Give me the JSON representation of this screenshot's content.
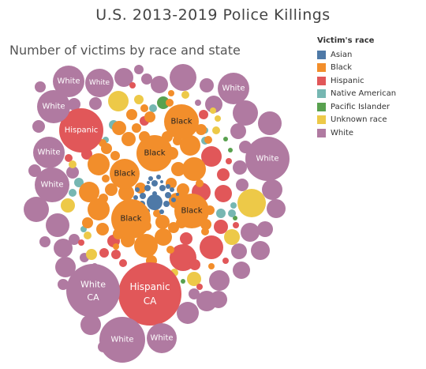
{
  "title": "U.S. 2013-2019 Police Killings",
  "subtitle": "Number of victims by race and state",
  "legend": {
    "title": "Victim's race",
    "items": [
      {
        "label": "Asian",
        "color": "#4e79a7"
      },
      {
        "label": "Black",
        "color": "#f28e2b"
      },
      {
        "label": "Hispanic",
        "color": "#e15759"
      },
      {
        "label": "Native American",
        "color": "#76b7b2"
      },
      {
        "label": "Pacific Islander",
        "color": "#59a14f"
      },
      {
        "label": "Unknown race",
        "color": "#edc948"
      },
      {
        "label": "White",
        "color": "#b07aa1"
      }
    ]
  },
  "chart_data": {
    "type": "packed-bubble",
    "title": "U.S. 2013-2019 Police Killings",
    "subtitle": "Number of victims by race and state",
    "legend_position": "top-right",
    "labeled_bubbles": [
      {
        "race": "Hispanic",
        "state": "CA",
        "lines": [
          "Hispanic",
          "CA"
        ]
      },
      {
        "race": "White",
        "state": "CA",
        "lines": [
          "White",
          "CA"
        ]
      },
      {
        "race": "Hispanic",
        "lines": [
          "Hispanic"
        ]
      },
      {
        "race": "Black",
        "lines": [
          "Black"
        ]
      },
      {
        "race": "Black",
        "lines": [
          "Black"
        ]
      },
      {
        "race": "Black",
        "lines": [
          "Black"
        ]
      },
      {
        "race": "Black",
        "lines": [
          "Black"
        ]
      },
      {
        "race": "Black",
        "lines": [
          "Black"
        ]
      },
      {
        "race": "White",
        "lines": [
          "White"
        ]
      },
      {
        "race": "White",
        "lines": [
          "White"
        ]
      },
      {
        "race": "White",
        "lines": [
          "White"
        ]
      },
      {
        "race": "White",
        "lines": [
          "White"
        ]
      },
      {
        "race": "White",
        "lines": [
          "White"
        ]
      },
      {
        "race": "White",
        "lines": [
          "White"
        ]
      },
      {
        "race": "White",
        "lines": [
          "White"
        ]
      },
      {
        "race": "White",
        "lines": [
          "White"
        ]
      },
      {
        "race": "White",
        "lines": [
          "White"
        ]
      }
    ]
  }
}
